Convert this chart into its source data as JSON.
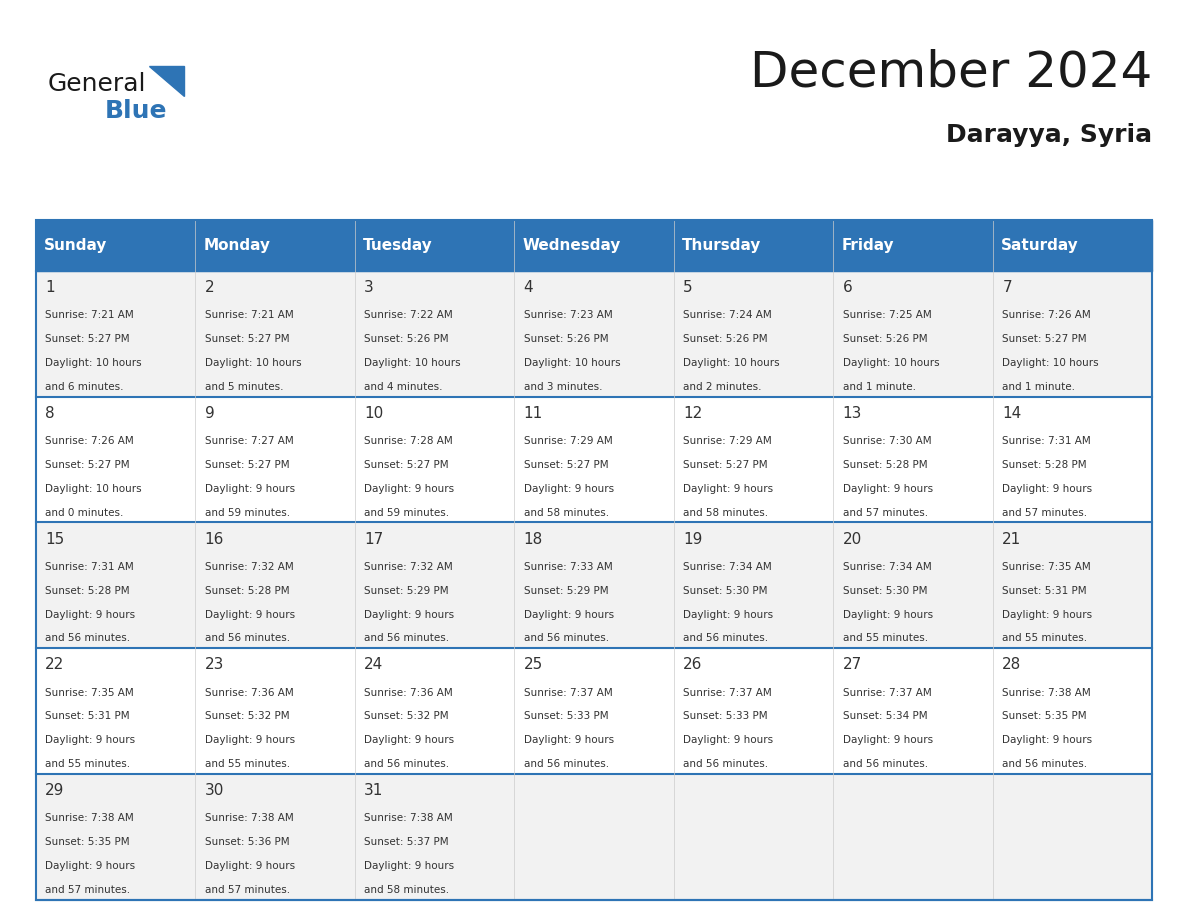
{
  "title": "December 2024",
  "subtitle": "Darayya, Syria",
  "header_color": "#2E74B5",
  "header_text_color": "#FFFFFF",
  "day_names": [
    "Sunday",
    "Monday",
    "Tuesday",
    "Wednesday",
    "Thursday",
    "Friday",
    "Saturday"
  ],
  "background_color": "#FFFFFF",
  "cell_alt_color": "#F2F2F2",
  "grid_line_color": "#2E74B5",
  "text_color": "#333333",
  "days": [
    {
      "day": 1,
      "col": 0,
      "row": 0,
      "sunrise": "7:21 AM",
      "sunset": "5:27 PM",
      "daylight_hours": 10,
      "daylight_minutes": 6
    },
    {
      "day": 2,
      "col": 1,
      "row": 0,
      "sunrise": "7:21 AM",
      "sunset": "5:27 PM",
      "daylight_hours": 10,
      "daylight_minutes": 5
    },
    {
      "day": 3,
      "col": 2,
      "row": 0,
      "sunrise": "7:22 AM",
      "sunset": "5:26 PM",
      "daylight_hours": 10,
      "daylight_minutes": 4
    },
    {
      "day": 4,
      "col": 3,
      "row": 0,
      "sunrise": "7:23 AM",
      "sunset": "5:26 PM",
      "daylight_hours": 10,
      "daylight_minutes": 3
    },
    {
      "day": 5,
      "col": 4,
      "row": 0,
      "sunrise": "7:24 AM",
      "sunset": "5:26 PM",
      "daylight_hours": 10,
      "daylight_minutes": 2
    },
    {
      "day": 6,
      "col": 5,
      "row": 0,
      "sunrise": "7:25 AM",
      "sunset": "5:26 PM",
      "daylight_hours": 10,
      "daylight_minutes": 1
    },
    {
      "day": 7,
      "col": 6,
      "row": 0,
      "sunrise": "7:26 AM",
      "sunset": "5:27 PM",
      "daylight_hours": 10,
      "daylight_minutes": 1
    },
    {
      "day": 8,
      "col": 0,
      "row": 1,
      "sunrise": "7:26 AM",
      "sunset": "5:27 PM",
      "daylight_hours": 10,
      "daylight_minutes": 0
    },
    {
      "day": 9,
      "col": 1,
      "row": 1,
      "sunrise": "7:27 AM",
      "sunset": "5:27 PM",
      "daylight_hours": 9,
      "daylight_minutes": 59
    },
    {
      "day": 10,
      "col": 2,
      "row": 1,
      "sunrise": "7:28 AM",
      "sunset": "5:27 PM",
      "daylight_hours": 9,
      "daylight_minutes": 59
    },
    {
      "day": 11,
      "col": 3,
      "row": 1,
      "sunrise": "7:29 AM",
      "sunset": "5:27 PM",
      "daylight_hours": 9,
      "daylight_minutes": 58
    },
    {
      "day": 12,
      "col": 4,
      "row": 1,
      "sunrise": "7:29 AM",
      "sunset": "5:27 PM",
      "daylight_hours": 9,
      "daylight_minutes": 58
    },
    {
      "day": 13,
      "col": 5,
      "row": 1,
      "sunrise": "7:30 AM",
      "sunset": "5:28 PM",
      "daylight_hours": 9,
      "daylight_minutes": 57
    },
    {
      "day": 14,
      "col": 6,
      "row": 1,
      "sunrise": "7:31 AM",
      "sunset": "5:28 PM",
      "daylight_hours": 9,
      "daylight_minutes": 57
    },
    {
      "day": 15,
      "col": 0,
      "row": 2,
      "sunrise": "7:31 AM",
      "sunset": "5:28 PM",
      "daylight_hours": 9,
      "daylight_minutes": 56
    },
    {
      "day": 16,
      "col": 1,
      "row": 2,
      "sunrise": "7:32 AM",
      "sunset": "5:28 PM",
      "daylight_hours": 9,
      "daylight_minutes": 56
    },
    {
      "day": 17,
      "col": 2,
      "row": 2,
      "sunrise": "7:32 AM",
      "sunset": "5:29 PM",
      "daylight_hours": 9,
      "daylight_minutes": 56
    },
    {
      "day": 18,
      "col": 3,
      "row": 2,
      "sunrise": "7:33 AM",
      "sunset": "5:29 PM",
      "daylight_hours": 9,
      "daylight_minutes": 56
    },
    {
      "day": 19,
      "col": 4,
      "row": 2,
      "sunrise": "7:34 AM",
      "sunset": "5:30 PM",
      "daylight_hours": 9,
      "daylight_minutes": 56
    },
    {
      "day": 20,
      "col": 5,
      "row": 2,
      "sunrise": "7:34 AM",
      "sunset": "5:30 PM",
      "daylight_hours": 9,
      "daylight_minutes": 55
    },
    {
      "day": 21,
      "col": 6,
      "row": 2,
      "sunrise": "7:35 AM",
      "sunset": "5:31 PM",
      "daylight_hours": 9,
      "daylight_minutes": 55
    },
    {
      "day": 22,
      "col": 0,
      "row": 3,
      "sunrise": "7:35 AM",
      "sunset": "5:31 PM",
      "daylight_hours": 9,
      "daylight_minutes": 55
    },
    {
      "day": 23,
      "col": 1,
      "row": 3,
      "sunrise": "7:36 AM",
      "sunset": "5:32 PM",
      "daylight_hours": 9,
      "daylight_minutes": 55
    },
    {
      "day": 24,
      "col": 2,
      "row": 3,
      "sunrise": "7:36 AM",
      "sunset": "5:32 PM",
      "daylight_hours": 9,
      "daylight_minutes": 56
    },
    {
      "day": 25,
      "col": 3,
      "row": 3,
      "sunrise": "7:37 AM",
      "sunset": "5:33 PM",
      "daylight_hours": 9,
      "daylight_minutes": 56
    },
    {
      "day": 26,
      "col": 4,
      "row": 3,
      "sunrise": "7:37 AM",
      "sunset": "5:33 PM",
      "daylight_hours": 9,
      "daylight_minutes": 56
    },
    {
      "day": 27,
      "col": 5,
      "row": 3,
      "sunrise": "7:37 AM",
      "sunset": "5:34 PM",
      "daylight_hours": 9,
      "daylight_minutes": 56
    },
    {
      "day": 28,
      "col": 6,
      "row": 3,
      "sunrise": "7:38 AM",
      "sunset": "5:35 PM",
      "daylight_hours": 9,
      "daylight_minutes": 56
    },
    {
      "day": 29,
      "col": 0,
      "row": 4,
      "sunrise": "7:38 AM",
      "sunset": "5:35 PM",
      "daylight_hours": 9,
      "daylight_minutes": 57
    },
    {
      "day": 30,
      "col": 1,
      "row": 4,
      "sunrise": "7:38 AM",
      "sunset": "5:36 PM",
      "daylight_hours": 9,
      "daylight_minutes": 57
    },
    {
      "day": 31,
      "col": 2,
      "row": 4,
      "sunrise": "7:38 AM",
      "sunset": "5:37 PM",
      "daylight_hours": 9,
      "daylight_minutes": 58
    }
  ],
  "logo_text_general": "General",
  "logo_text_blue": "Blue",
  "logo_color_general": "#1a1a1a",
  "logo_color_blue": "#2E74B5",
  "logo_triangle_color": "#2E74B5"
}
